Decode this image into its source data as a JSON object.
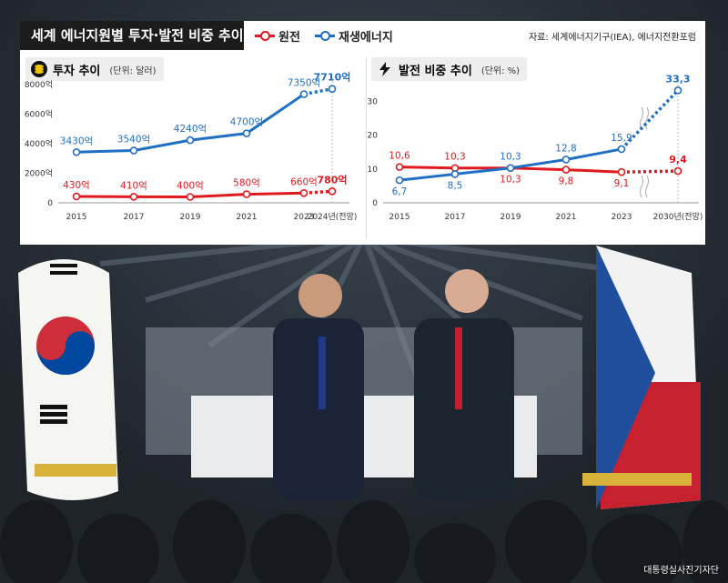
{
  "title": "세계 에너지원별 투자·발전 비중 추이",
  "legend": [
    {
      "label": "원전",
      "color": "#e0191f"
    },
    {
      "label": "재생에너지",
      "color": "#1f6fc5"
    }
  ],
  "source": "자료: 세계에너지기구(IEA), 에너지전환포럼",
  "photo_credit": "대통령실사진기자단",
  "panels": {
    "investment": {
      "title": "투자 추이",
      "unit": "(단위: 달러)",
      "icon": "coin-stack-icon"
    },
    "generation": {
      "title": "발전 비중 추이",
      "unit": "(단위: %)",
      "icon": "lightning-icon"
    }
  },
  "chart_data": [
    {
      "type": "line",
      "title": "투자 추이",
      "unit": "(단위: 달러)",
      "x": [
        "2015",
        "2017",
        "2019",
        "2021",
        "2023",
        "2024년(전망)"
      ],
      "y_ticks": [
        "0",
        "2000억",
        "4000억",
        "6000억",
        "8000억"
      ],
      "ylim": [
        0,
        8000
      ],
      "grid": false,
      "series": [
        {
          "name": "원전",
          "color": "#e0191f",
          "values": [
            430,
            410,
            400,
            580,
            660,
            780
          ],
          "labels": [
            "430억",
            "410억",
            "400억",
            "580억",
            "660억",
            "780억"
          ],
          "projected_from_index": 4
        },
        {
          "name": "재생에너지",
          "color": "#1f6fc5",
          "values": [
            3430,
            3540,
            4240,
            4700,
            7350,
            7710
          ],
          "labels": [
            "3430억",
            "3540억",
            "4240억",
            "4700억",
            "7350억",
            "7710억"
          ],
          "projected_from_index": 4
        }
      ]
    },
    {
      "type": "line",
      "title": "발전 비중 추이",
      "unit": "(단위: %)",
      "x": [
        "2015",
        "2017",
        "2019",
        "2021",
        "2023",
        "2030년(전망)"
      ],
      "y_ticks": [
        "0",
        "10",
        "20",
        "30"
      ],
      "ylim": [
        0,
        35
      ],
      "axis_break": "between 2023 and 2030년(전망)",
      "grid": false,
      "series": [
        {
          "name": "원전",
          "color": "#e0191f",
          "values": [
            10.6,
            10.3,
            10.3,
            9.8,
            9.1,
            9.4
          ],
          "labels": [
            "10,6",
            "10,3",
            "10,3",
            "9,8",
            "9,1",
            "9,4"
          ],
          "projected_from_index": 4
        },
        {
          "name": "재생에너지",
          "color": "#1f6fc5",
          "values": [
            6.7,
            8.5,
            10.3,
            12.8,
            15.9,
            33.3
          ],
          "labels": [
            "6,7",
            "8,5",
            "10,3",
            "12,8",
            "15,9",
            "33,3"
          ],
          "projected_from_index": 4
        }
      ]
    }
  ]
}
